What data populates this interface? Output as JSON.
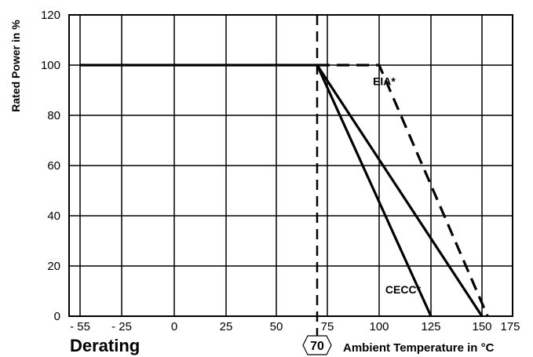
{
  "chart_data": {
    "type": "line",
    "title": "Derating",
    "xlabel": "Ambient Temperature in °C",
    "ylabel": "Rated Power in %",
    "x_ticks": [
      {
        "value": -55,
        "label": "- 55"
      },
      {
        "value": -25,
        "label": "- 25"
      },
      {
        "value": 0,
        "label": "0"
      },
      {
        "value": 25,
        "label": "25"
      },
      {
        "value": 50,
        "label": "50"
      },
      {
        "value": 75,
        "label": "75"
      },
      {
        "value": 100,
        "label": "100"
      },
      {
        "value": 125,
        "label": "125"
      },
      {
        "value": 150,
        "label": "150"
      },
      {
        "value": 175,
        "label": "175"
      }
    ],
    "y_ticks": [
      {
        "value": 0,
        "label": "0"
      },
      {
        "value": 20,
        "label": "20"
      },
      {
        "value": 40,
        "label": "40"
      },
      {
        "value": 60,
        "label": "60"
      },
      {
        "value": 80,
        "label": "80"
      },
      {
        "value": 100,
        "label": "100"
      },
      {
        "value": 120,
        "label": "120"
      }
    ],
    "xlim": [
      -55,
      155
    ],
    "ylim": [
      0,
      120
    ],
    "grid": true,
    "vertical_marker": {
      "x": 70,
      "label": "70",
      "style": "dashed"
    },
    "series": [
      {
        "x": [
          -55,
          70,
          125
        ],
        "y": [
          100,
          100,
          0
        ],
        "style": "solid"
      },
      {
        "x": [
          70,
          150
        ],
        "y": [
          100,
          0
        ],
        "style": "solid"
      },
      {
        "x": [
          70,
          100,
          155
        ],
        "y": [
          100,
          100,
          0
        ],
        "style": "dashed"
      }
    ],
    "annotations": [
      {
        "text": "EIA*",
        "x": 97,
        "y": 92
      },
      {
        "text": "CECC*",
        "x": 103,
        "y": 9
      }
    ]
  }
}
